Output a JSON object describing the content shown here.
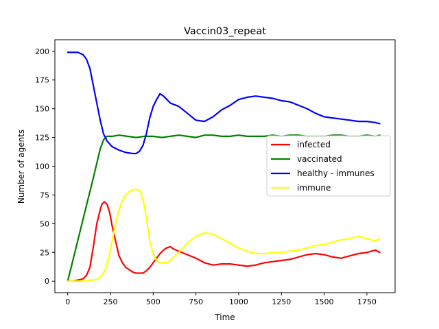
{
  "chart_data": {
    "type": "line",
    "title": "Vaccin03_repeat",
    "xlabel": "Time",
    "ylabel": "Number of agents",
    "xlim": [
      -75,
      1915
    ],
    "ylim": [
      -10,
      210
    ],
    "xticks": [
      0,
      250,
      500,
      750,
      1000,
      1250,
      1500,
      1750
    ],
    "yticks": [
      0,
      25,
      50,
      75,
      100,
      125,
      150,
      175,
      200
    ],
    "grid": false,
    "legend_position": "center-right",
    "series": [
      {
        "name": "infected",
        "color": "#ff0000",
        "x": [
          0,
          30,
          60,
          90,
          110,
          130,
          150,
          170,
          190,
          200,
          215,
          230,
          245,
          260,
          280,
          300,
          320,
          340,
          360,
          380,
          400,
          420,
          440,
          460,
          480,
          500,
          520,
          540,
          560,
          580,
          600,
          620,
          650,
          700,
          750,
          800,
          850,
          900,
          950,
          1000,
          1050,
          1100,
          1150,
          1200,
          1250,
          1300,
          1350,
          1400,
          1450,
          1500,
          1550,
          1600,
          1650,
          1700,
          1750,
          1800,
          1825
        ],
        "y": [
          0,
          0,
          1,
          2,
          5,
          12,
          30,
          50,
          62,
          67,
          69,
          67,
          60,
          48,
          35,
          22,
          16,
          12,
          10,
          8,
          7,
          7,
          7,
          9,
          12,
          16,
          20,
          24,
          27,
          29,
          30,
          28,
          26,
          23,
          20,
          16,
          14,
          15,
          15,
          14,
          13,
          14,
          16,
          17,
          18,
          19,
          21,
          23,
          24,
          23,
          21,
          20,
          22,
          24,
          25,
          27,
          25
        ]
      },
      {
        "name": "vaccinated",
        "color": "#008000",
        "x": [
          0,
          50,
          100,
          150,
          190,
          210,
          230,
          260,
          300,
          350,
          400,
          450,
          500,
          550,
          600,
          650,
          700,
          750,
          800,
          850,
          900,
          950,
          1000,
          1050,
          1100,
          1150,
          1200,
          1250,
          1300,
          1350,
          1400,
          1450,
          1500,
          1550,
          1600,
          1650,
          1700,
          1750,
          1800,
          1825
        ],
        "y": [
          0,
          30,
          60,
          90,
          115,
          123,
          126,
          126,
          127,
          126,
          125,
          126,
          126,
          125,
          126,
          127,
          126,
          125,
          127,
          127,
          126,
          126,
          127,
          126,
          126,
          126,
          127,
          126,
          127,
          127,
          126,
          126,
          126,
          127,
          127,
          126,
          126,
          127,
          126,
          127
        ]
      },
      {
        "name": "healthy - immunes",
        "color": "#0000ff",
        "x": [
          0,
          30,
          60,
          90,
          110,
          130,
          150,
          170,
          190,
          210,
          230,
          260,
          300,
          340,
          380,
          400,
          420,
          440,
          460,
          480,
          500,
          520,
          540,
          560,
          580,
          600,
          650,
          700,
          750,
          800,
          850,
          900,
          950,
          1000,
          1050,
          1100,
          1150,
          1200,
          1250,
          1300,
          1350,
          1400,
          1450,
          1500,
          1550,
          1600,
          1650,
          1700,
          1750,
          1800,
          1825
        ],
        "y": [
          199,
          199,
          199,
          197,
          193,
          185,
          170,
          155,
          140,
          128,
          122,
          117,
          114,
          112,
          111,
          111,
          113,
          118,
          128,
          142,
          152,
          158,
          163,
          161,
          158,
          155,
          152,
          146,
          140,
          139,
          143,
          149,
          153,
          158,
          160,
          161,
          160,
          159,
          157,
          156,
          153,
          150,
          146,
          143,
          142,
          141,
          140,
          139,
          139,
          138,
          137
        ]
      },
      {
        "name": "immune",
        "color": "#ffff00",
        "x": [
          0,
          50,
          100,
          150,
          180,
          200,
          220,
          240,
          260,
          280,
          300,
          320,
          340,
          360,
          380,
          400,
          420,
          440,
          460,
          480,
          500,
          520,
          540,
          560,
          580,
          600,
          650,
          700,
          750,
          800,
          850,
          900,
          950,
          1000,
          1050,
          1100,
          1150,
          1200,
          1250,
          1300,
          1350,
          1400,
          1450,
          1500,
          1550,
          1600,
          1650,
          1700,
          1750,
          1800,
          1825
        ],
        "y": [
          0,
          0,
          0,
          1,
          2,
          5,
          10,
          20,
          35,
          50,
          62,
          70,
          75,
          78,
          79,
          80,
          79,
          72,
          55,
          35,
          24,
          18,
          16,
          16,
          16,
          18,
          25,
          33,
          39,
          42,
          41,
          37,
          33,
          29,
          26,
          24,
          24,
          25,
          25,
          26,
          27,
          29,
          31,
          32,
          34,
          36,
          37,
          39,
          37,
          35,
          37
        ]
      }
    ]
  }
}
